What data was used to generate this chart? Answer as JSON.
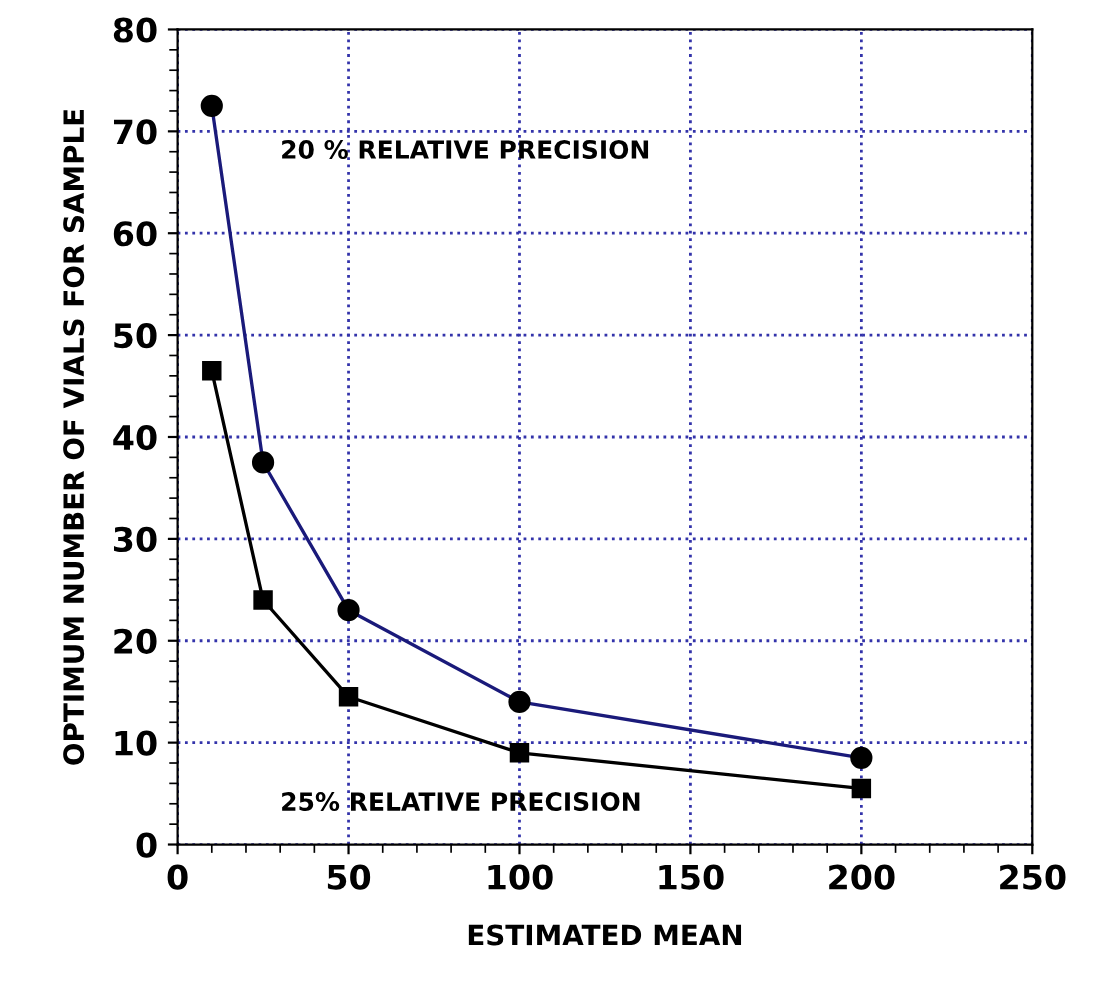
{
  "chart_data": {
    "type": "line",
    "xlabel": "ESTIMATED MEAN",
    "ylabel": "OPTIMUM NUMBER OF VIALS FOR SAMPLE",
    "xlim": [
      0,
      250
    ],
    "xticks": [
      0,
      50,
      100,
      150,
      200,
      250
    ],
    "ylim": [
      0,
      80
    ],
    "yticks": [
      0,
      10,
      20,
      30,
      40,
      50,
      60,
      70,
      80
    ],
    "grid": true,
    "series": [
      {
        "name": "20 % RELATIVE PRECISION",
        "color": "#1a1a7a",
        "marker": "circle",
        "x": [
          10,
          25,
          50,
          100,
          200
        ],
        "values": [
          72.5,
          37.5,
          23,
          14,
          8.5
        ]
      },
      {
        "name": "25% RELATIVE PRECISION",
        "color": "#000000",
        "marker": "square",
        "x": [
          10,
          25,
          50,
          100,
          200
        ],
        "values": [
          46.5,
          24,
          14.5,
          9,
          5.5
        ]
      }
    ]
  }
}
